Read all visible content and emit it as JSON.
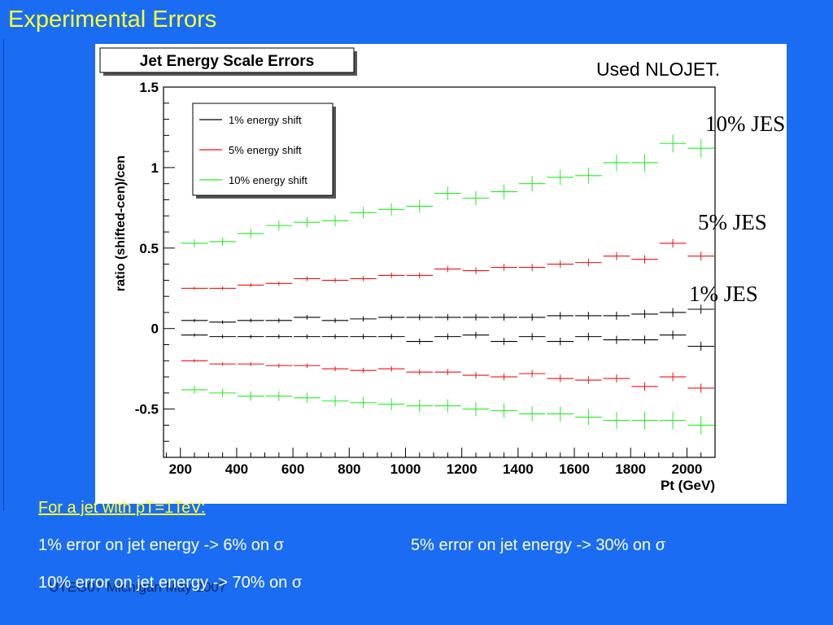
{
  "slide": {
    "title": "Experimental Errors",
    "figure_note": "Used NLOJET.",
    "jes_labels": {
      "ten": "10% JES",
      "five": "5% JES",
      "one": "1% JES"
    },
    "heading": "For a jet with pT=1TeV:",
    "line1_left": "1% error on jet energy -> 6% on σ",
    "line1_right": "5% error on jet energy -> 30% on σ",
    "line2": "10% error on jet energy -> 70% on σ",
    "footer": "UTEG07 Michigan May 2007"
  },
  "chart_data": {
    "type": "scatter",
    "title": "Jet Energy Scale Errors",
    "xlabel": "Pt (GeV)",
    "ylabel": "ratio (shifted-cen)/cen",
    "xlim": [
      140,
      2100
    ],
    "ylim": [
      -0.8,
      1.5
    ],
    "xticks": [
      "200",
      "400",
      "600",
      "800",
      "1000",
      "1200",
      "1400",
      "1600",
      "1800",
      "2000"
    ],
    "yticks": [
      "-0.5",
      "0",
      "0.5",
      "1",
      "1.5"
    ],
    "legend_position": "top-left",
    "x": [
      250,
      350,
      450,
      550,
      650,
      750,
      850,
      950,
      1050,
      1150,
      1250,
      1350,
      1450,
      1550,
      1650,
      1750,
      1850,
      1950,
      2050
    ],
    "series": [
      {
        "name": "1% energy shift",
        "color": "#000000",
        "values": [
          0.05,
          0.04,
          0.05,
          0.05,
          0.07,
          0.05,
          0.06,
          0.07,
          0.07,
          0.07,
          0.07,
          0.07,
          0.07,
          0.08,
          0.08,
          0.08,
          0.09,
          0.1,
          0.12
        ]
      },
      {
        "name": "1% energy shift",
        "color": "#000000",
        "values": [
          -0.04,
          -0.05,
          -0.05,
          -0.05,
          -0.05,
          -0.05,
          -0.05,
          -0.05,
          -0.08,
          -0.05,
          -0.04,
          -0.08,
          -0.05,
          -0.08,
          -0.05,
          -0.07,
          -0.07,
          -0.04,
          -0.11
        ]
      },
      {
        "name": "5% energy shift",
        "color": "#ee1111",
        "values": [
          0.25,
          0.25,
          0.27,
          0.28,
          0.31,
          0.3,
          0.31,
          0.33,
          0.33,
          0.37,
          0.36,
          0.38,
          0.38,
          0.4,
          0.41,
          0.45,
          0.43,
          0.53,
          0.45
        ]
      },
      {
        "name": "5% energy shift",
        "color": "#ee1111",
        "values": [
          -0.2,
          -0.22,
          -0.22,
          -0.23,
          -0.23,
          -0.25,
          -0.26,
          -0.25,
          -0.27,
          -0.27,
          -0.29,
          -0.3,
          -0.28,
          -0.31,
          -0.32,
          -0.31,
          -0.36,
          -0.3,
          -0.37
        ]
      },
      {
        "name": "10% energy shift",
        "color": "#22ee22",
        "values": [
          0.53,
          0.54,
          0.59,
          0.64,
          0.66,
          0.67,
          0.72,
          0.74,
          0.76,
          0.84,
          0.81,
          0.85,
          0.9,
          0.94,
          0.95,
          1.03,
          1.03,
          1.15,
          1.12
        ]
      },
      {
        "name": "10% energy shift",
        "color": "#22ee22",
        "values": [
          -0.38,
          -0.4,
          -0.42,
          -0.42,
          -0.43,
          -0.45,
          -0.46,
          -0.47,
          -0.48,
          -0.48,
          -0.5,
          -0.51,
          -0.53,
          -0.53,
          -0.55,
          -0.57,
          -0.57,
          -0.57,
          -0.6
        ]
      }
    ]
  }
}
